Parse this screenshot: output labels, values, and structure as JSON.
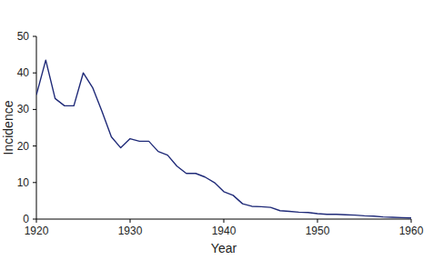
{
  "chart_data": {
    "type": "line",
    "x_label": "Year",
    "y_label": "Incidence",
    "x": [
      1920,
      1921,
      1922,
      1923,
      1924,
      1925,
      1926,
      1927,
      1928,
      1929,
      1930,
      1931,
      1932,
      1933,
      1934,
      1935,
      1936,
      1937,
      1938,
      1939,
      1940,
      1941,
      1942,
      1943,
      1944,
      1945,
      1946,
      1947,
      1948,
      1949,
      1950,
      1951,
      1952,
      1953,
      1954,
      1955,
      1956,
      1957,
      1958,
      1959,
      1960
    ],
    "series": [
      {
        "name": "Incidence",
        "color": "#1f2a78",
        "values": [
          34,
          43.5,
          33,
          31,
          31,
          40,
          36,
          29.5,
          22.5,
          19.5,
          22,
          21.3,
          21.3,
          18.5,
          17.5,
          14.5,
          12.5,
          12.5,
          11.5,
          10,
          7.5,
          6.5,
          4.2,
          3.5,
          3.4,
          3.2,
          2.3,
          2.1,
          1.9,
          1.8,
          1.5,
          1.3,
          1.3,
          1.2,
          1.1,
          0.9,
          0.8,
          0.6,
          0.5,
          0.4,
          0.3
        ]
      }
    ],
    "xlim": [
      1920,
      1960
    ],
    "ylim": [
      0,
      50
    ],
    "xticks": [
      1920,
      1930,
      1940,
      1950,
      1960
    ],
    "yticks": [
      0,
      10,
      20,
      30,
      40,
      50
    ],
    "grid": false
  }
}
